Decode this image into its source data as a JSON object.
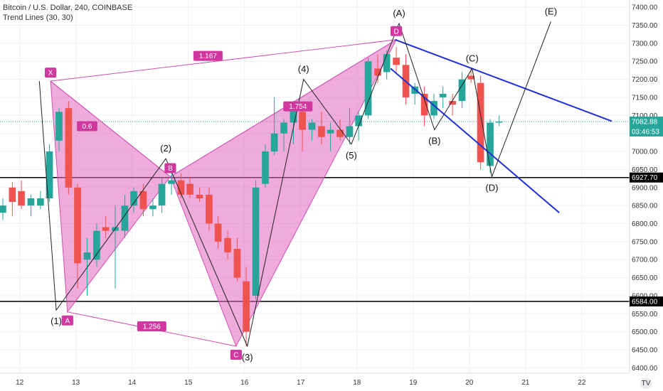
{
  "header": {
    "title": "Bitcoin / U.S. Dollar, 240, COINBASE",
    "indicator": "Trend Lines (30, 30)"
  },
  "footer": {
    "logo": "TV"
  },
  "colors": {
    "up": "#26a69a",
    "down": "#ef5350",
    "harmonic_fill": "#e066c0",
    "harmonic_line": "#d050b0",
    "channel": "#1f2fd9",
    "wave": "#222222",
    "level": "#000000",
    "current": "#26a69a"
  },
  "chart_data": {
    "type": "candlestick",
    "y_range": [
      6385,
      7420
    ],
    "x_range": [
      11.65,
      22.85
    ],
    "price_ticks": [
      6400,
      6450,
      6500,
      6550,
      6600,
      6650,
      6700,
      6750,
      6800,
      6850,
      6900,
      6950,
      7000,
      7050,
      7100,
      7150,
      7200,
      7250,
      7300,
      7350,
      7400
    ],
    "date_ticks": [
      {
        "x": 12,
        "label": "12"
      },
      {
        "x": 13,
        "label": "13"
      },
      {
        "x": 14,
        "label": "14"
      },
      {
        "x": 15,
        "label": "15"
      },
      {
        "x": 16,
        "label": "16"
      },
      {
        "x": 17,
        "label": "17"
      },
      {
        "x": 18,
        "label": "18"
      },
      {
        "x": 19,
        "label": "19"
      },
      {
        "x": 20,
        "label": "20"
      },
      {
        "x": 21,
        "label": "21"
      },
      {
        "x": 22,
        "label": "22"
      }
    ],
    "candles": [
      {
        "t": 11.7,
        "o": 6830,
        "h": 6870,
        "l": 6810,
        "c": 6850
      },
      {
        "t": 11.87,
        "o": 6900,
        "h": 6915,
        "l": 6820,
        "c": 6860
      },
      {
        "t": 12.03,
        "o": 6890,
        "h": 6920,
        "l": 6840,
        "c": 6850
      },
      {
        "t": 12.2,
        "o": 6850,
        "h": 6880,
        "l": 6820,
        "c": 6870
      },
      {
        "t": 12.37,
        "o": 6850,
        "h": 6890,
        "l": 6840,
        "c": 6870
      },
      {
        "t": 12.53,
        "o": 6870,
        "h": 7020,
        "l": 6860,
        "c": 7000
      },
      {
        "t": 12.7,
        "o": 7030,
        "h": 7120,
        "l": 7000,
        "c": 7110
      },
      {
        "t": 12.87,
        "o": 7120,
        "h": 7140,
        "l": 6880,
        "c": 6900
      },
      {
        "t": 13.03,
        "o": 6900,
        "h": 6910,
        "l": 6620,
        "c": 6690
      },
      {
        "t": 13.2,
        "o": 6700,
        "h": 6760,
        "l": 6600,
        "c": 6720
      },
      {
        "t": 13.37,
        "o": 6700,
        "h": 6800,
        "l": 6680,
        "c": 6780
      },
      {
        "t": 13.53,
        "o": 6790,
        "h": 6820,
        "l": 6760,
        "c": 6780
      },
      {
        "t": 13.7,
        "o": 6780,
        "h": 6850,
        "l": 6620,
        "c": 6790
      },
      {
        "t": 13.87,
        "o": 6780,
        "h": 6880,
        "l": 6760,
        "c": 6850
      },
      {
        "t": 14.03,
        "o": 6850,
        "h": 6900,
        "l": 6830,
        "c": 6890
      },
      {
        "t": 14.2,
        "o": 6890,
        "h": 6910,
        "l": 6820,
        "c": 6840
      },
      {
        "t": 14.37,
        "o": 6840,
        "h": 6870,
        "l": 6820,
        "c": 6850
      },
      {
        "t": 14.53,
        "o": 6850,
        "h": 6930,
        "l": 6830,
        "c": 6910
      },
      {
        "t": 14.7,
        "o": 6910,
        "h": 6940,
        "l": 6880,
        "c": 6920
      },
      {
        "t": 14.87,
        "o": 6920,
        "h": 6940,
        "l": 6870,
        "c": 6880
      },
      {
        "t": 15.03,
        "o": 6910,
        "h": 6930,
        "l": 6870,
        "c": 6880
      },
      {
        "t": 15.2,
        "o": 6880,
        "h": 6900,
        "l": 6860,
        "c": 6870
      },
      {
        "t": 15.37,
        "o": 6880,
        "h": 6900,
        "l": 6780,
        "c": 6800
      },
      {
        "t": 15.53,
        "o": 6800,
        "h": 6820,
        "l": 6730,
        "c": 6750
      },
      {
        "t": 15.7,
        "o": 6760,
        "h": 6780,
        "l": 6700,
        "c": 6720
      },
      {
        "t": 15.87,
        "o": 6730,
        "h": 6760,
        "l": 6640,
        "c": 6650
      },
      {
        "t": 16.03,
        "o": 6640,
        "h": 6680,
        "l": 6460,
        "c": 6500
      },
      {
        "t": 16.2,
        "o": 6600,
        "h": 6920,
        "l": 6590,
        "c": 6900
      },
      {
        "t": 16.37,
        "o": 6910,
        "h": 7020,
        "l": 6900,
        "c": 7000
      },
      {
        "t": 16.53,
        "o": 7000,
        "h": 7150,
        "l": 6990,
        "c": 7050
      },
      {
        "t": 16.7,
        "o": 7050,
        "h": 7090,
        "l": 7000,
        "c": 7080
      },
      {
        "t": 16.87,
        "o": 7080,
        "h": 7140,
        "l": 7020,
        "c": 7120
      },
      {
        "t": 17.03,
        "o": 7110,
        "h": 7130,
        "l": 7000,
        "c": 7060
      },
      {
        "t": 17.2,
        "o": 7060,
        "h": 7090,
        "l": 7030,
        "c": 7080
      },
      {
        "t": 17.37,
        "o": 7070,
        "h": 7110,
        "l": 7020,
        "c": 7040
      },
      {
        "t": 17.53,
        "o": 7050,
        "h": 7080,
        "l": 7000,
        "c": 7060
      },
      {
        "t": 17.7,
        "o": 7060,
        "h": 7090,
        "l": 7030,
        "c": 7040
      },
      {
        "t": 17.87,
        "o": 7040,
        "h": 7120,
        "l": 7020,
        "c": 7070
      },
      {
        "t": 18.03,
        "o": 7070,
        "h": 7110,
        "l": 7030,
        "c": 7100
      },
      {
        "t": 18.2,
        "o": 7100,
        "h": 7260,
        "l": 7090,
        "c": 7250
      },
      {
        "t": 18.37,
        "o": 7230,
        "h": 7270,
        "l": 7190,
        "c": 7210
      },
      {
        "t": 18.53,
        "o": 7220,
        "h": 7280,
        "l": 7200,
        "c": 7270
      },
      {
        "t": 18.7,
        "o": 7260,
        "h": 7290,
        "l": 7220,
        "c": 7240
      },
      {
        "t": 18.87,
        "o": 7240,
        "h": 7270,
        "l": 7130,
        "c": 7150
      },
      {
        "t": 19.03,
        "o": 7160,
        "h": 7190,
        "l": 7130,
        "c": 7180
      },
      {
        "t": 19.2,
        "o": 7160,
        "h": 7180,
        "l": 7070,
        "c": 7100
      },
      {
        "t": 19.37,
        "o": 7100,
        "h": 7160,
        "l": 7090,
        "c": 7140
      },
      {
        "t": 19.53,
        "o": 7150,
        "h": 7180,
        "l": 7120,
        "c": 7160
      },
      {
        "t": 19.7,
        "o": 7140,
        "h": 7160,
        "l": 7100,
        "c": 7130
      },
      {
        "t": 19.87,
        "o": 7140,
        "h": 7220,
        "l": 7120,
        "c": 7200
      },
      {
        "t": 20.03,
        "o": 7210,
        "h": 7230,
        "l": 7190,
        "c": 7200
      },
      {
        "t": 20.2,
        "o": 7190,
        "h": 7210,
        "l": 6950,
        "c": 6970
      },
      {
        "t": 20.37,
        "o": 6960,
        "h": 7090,
        "l": 6940,
        "c": 7080
      },
      {
        "t": 20.53,
        "o": 7080,
        "h": 7100,
        "l": 7070,
        "c": 7082.88
      }
    ],
    "horizontal_levels": [
      {
        "price": 6927.7,
        "label": "6927.70"
      },
      {
        "price": 6584.0,
        "label": "6584.00"
      }
    ],
    "current_price": {
      "price": 7082.88,
      "label": "7082.88",
      "countdown": "03:46:53"
    },
    "harmonic_pattern": {
      "points": [
        {
          "name": "X",
          "t": 12.55,
          "p": 7195
        },
        {
          "name": "A",
          "t": 12.85,
          "p": 6555
        },
        {
          "name": "B",
          "t": 14.68,
          "p": 6930
        },
        {
          "name": "C",
          "t": 15.85,
          "p": 6460
        },
        {
          "name": "D",
          "t": 18.7,
          "p": 7310
        }
      ],
      "ratios": [
        {
          "label": "0.6",
          "t": 13.2,
          "p": 7070
        },
        {
          "label": "1.167",
          "t": 15.35,
          "p": 7265
        },
        {
          "label": "1.256",
          "t": 14.35,
          "p": 6515
        },
        {
          "label": "1.754",
          "t": 16.95,
          "p": 7125
        }
      ]
    },
    "wave_count": {
      "path": [
        {
          "t": 12.35,
          "p": 7195
        },
        {
          "t": 12.65,
          "p": 6560,
          "label": "(1)"
        },
        {
          "t": 14.6,
          "p": 6980,
          "label": "(2)"
        },
        {
          "t": 16.05,
          "p": 6460,
          "label": "(3)"
        },
        {
          "t": 17.05,
          "p": 7200,
          "label": "(4)"
        },
        {
          "t": 17.9,
          "p": 7020,
          "label": "(5)"
        },
        {
          "t": 18.75,
          "p": 7355,
          "label": "(A)"
        },
        {
          "t": 19.38,
          "p": 7060,
          "label": "(B)"
        },
        {
          "t": 20.05,
          "p": 7230,
          "label": "(C)"
        },
        {
          "t": 20.4,
          "p": 6930,
          "label": "(D)"
        },
        {
          "t": 21.45,
          "p": 7360,
          "label": "(E)"
        }
      ]
    },
    "channel": [
      {
        "t1": 18.68,
        "p1": 7310,
        "t2": 23.2,
        "p2": 7045
      },
      {
        "t1": 18.6,
        "p1": 7230,
        "t2": 21.6,
        "p2": 6830
      }
    ]
  }
}
